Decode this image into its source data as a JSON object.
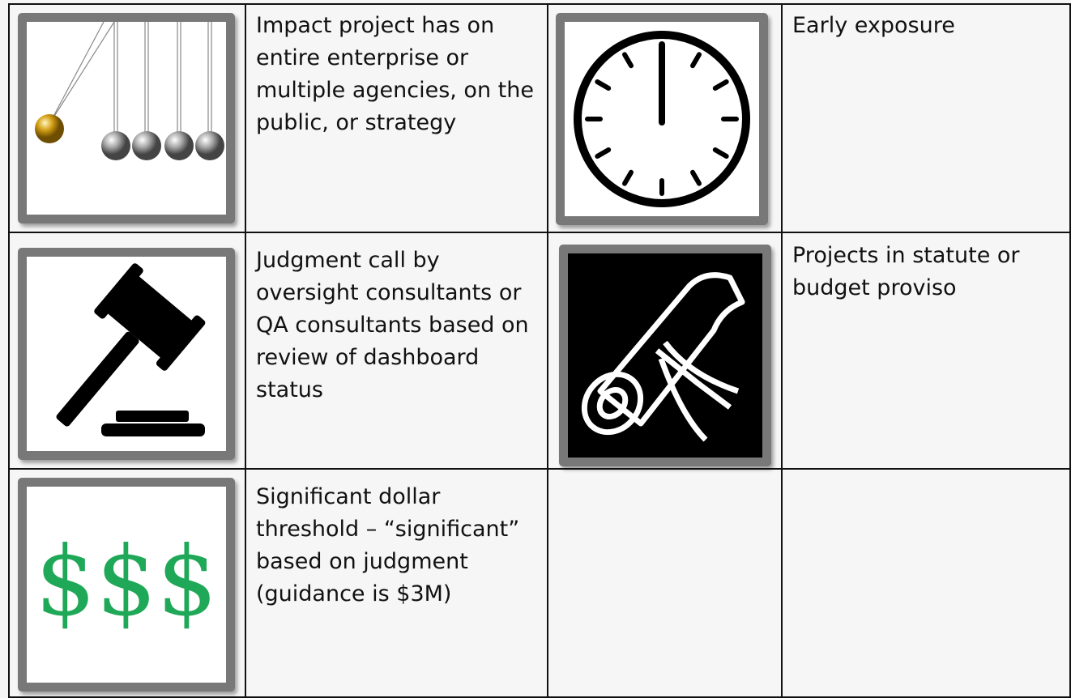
{
  "table": {
    "rows": [
      [
        "Impact project has on entire enterprise or multiple agencies, on the public, or strategy",
        "Early exposure"
      ],
      [
        "Judgment call by oversight consultants or QA consultants based on review of dashboard status",
        "Projects in statute or budget proviso"
      ],
      [
        "Significant dollar threshold – “significant” based on judgment (guidance is $3M)"
      ]
    ]
  },
  "icons": {
    "dollar": "$$$"
  }
}
